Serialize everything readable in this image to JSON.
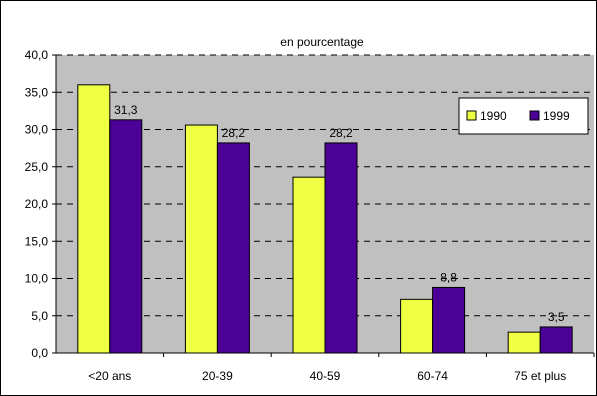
{
  "chart_data": {
    "type": "bar",
    "title": "en pourcentage",
    "categories": [
      "<20 ans",
      "20-39",
      "40-59",
      "60-74",
      "75 et plus"
    ],
    "series": [
      {
        "name": "1990",
        "values": [
          36.0,
          30.6,
          23.6,
          7.2,
          2.8
        ],
        "color": "#EEFF44"
      },
      {
        "name": "1999",
        "values": [
          31.3,
          28.2,
          28.2,
          8.8,
          3.5
        ],
        "color": "#4B0096"
      }
    ],
    "data_labels": [
      {
        "series": "1999",
        "category": "<20 ans",
        "text": "31,3"
      },
      {
        "series": "1999",
        "category": "20-39",
        "text": "28,2"
      },
      {
        "series": "1999",
        "category": "40-59",
        "text": "28,2"
      },
      {
        "series": "1999",
        "category": "60-74",
        "text": "8,8"
      },
      {
        "series": "1999",
        "category": "75 et plus",
        "text": "3,5"
      }
    ],
    "y_ticks": [
      "0,0",
      "5,0",
      "10,0",
      "15,0",
      "20,0",
      "25,0",
      "30,0",
      "35,0",
      "40,0"
    ],
    "ylim": [
      0,
      40
    ],
    "grid": true,
    "plot_background": "#C0C0C0",
    "legend_position": "right"
  }
}
